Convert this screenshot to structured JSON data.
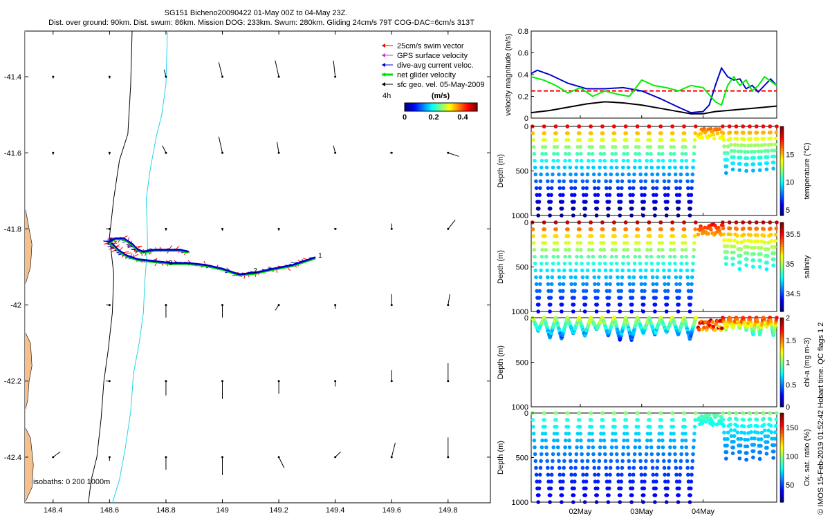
{
  "header": {
    "title_line1": "SG151 Bicheno20090422 01-May 00Z to 04-May 23Z.",
    "title_line2": "Dist. over ground: 90km. Dist. swum: 86km. Mission DOG: 233km. Swum: 280km. Gliding 24cm/s 79T COG-DAC=6cm/s 313T"
  },
  "credit": "© IMOS 15-Feb-2019 01:52:42 Hobart time. QC flags 1  2",
  "chart_data": [
    {
      "id": "map",
      "type": "scatter",
      "xlim": [
        148.3,
        149.95
      ],
      "ylim": [
        -42.52,
        -41.28
      ],
      "x_ticks": [
        148.4,
        148.6,
        148.8,
        149,
        149.2,
        149.4,
        149.6,
        149.8
      ],
      "x_tick_labels": [
        "148.4",
        "148.6",
        "148.8",
        "149",
        "149.2",
        "149.4",
        "149.6",
        "149.8"
      ],
      "y_ticks": [
        -41.4,
        -41.6,
        -41.8,
        -42,
        -42.2,
        -42.4
      ],
      "y_tick_labels": [
        "-41.4",
        "-41.6",
        "-41.8",
        "-42",
        "-42.2",
        "-42.4"
      ],
      "legend": {
        "placement": "top-right",
        "entries": [
          {
            "label": "25cm/s swim vector",
            "color": "#ff0000"
          },
          {
            "label": "GPS surface velocity",
            "color": "#cc33cc"
          },
          {
            "label": "dive-avg current veloc.",
            "color": "#0000cc"
          },
          {
            "label": "net glider velocity",
            "color": "#00dd00"
          },
          {
            "label": "sfc geo. vel. 05-May-2009",
            "color": "#000000"
          }
        ],
        "scale_label": "4h"
      },
      "colorbar": {
        "unit_label": "(m/s)",
        "ticks": [
          "0",
          "0.2",
          "0.4"
        ],
        "range": [
          0,
          0.5
        ]
      },
      "isobath_label": "isobaths: 0   200  1000m",
      "track_labels": [
        {
          "text": "1",
          "lon": 149.33,
          "lat": -41.87
        },
        {
          "text": "2",
          "lon": 149.1,
          "lat": -41.91
        },
        {
          "text": "3",
          "lon": 148.8,
          "lat": -41.89
        }
      ],
      "isobath_0": [
        [
          148.3,
          -41.28
        ],
        [
          148.3,
          -42.52
        ]
      ],
      "isobath_200": [
        [
          148.68,
          -41.28
        ],
        [
          148.675,
          -41.42
        ],
        [
          148.665,
          -41.55
        ],
        [
          148.635,
          -41.62
        ],
        [
          148.615,
          -41.72
        ],
        [
          148.6,
          -41.82
        ],
        [
          148.615,
          -41.92
        ],
        [
          148.61,
          -42.02
        ],
        [
          148.595,
          -42.12
        ],
        [
          148.58,
          -42.2
        ],
        [
          148.57,
          -42.3
        ],
        [
          148.555,
          -42.4
        ],
        [
          148.535,
          -42.46
        ],
        [
          148.525,
          -42.52
        ]
      ],
      "isobath_1000": [
        [
          148.805,
          -41.28
        ],
        [
          148.8,
          -41.42
        ],
        [
          148.785,
          -41.5
        ],
        [
          148.765,
          -41.56
        ],
        [
          148.745,
          -41.64
        ],
        [
          148.73,
          -41.72
        ],
        [
          148.735,
          -41.84
        ],
        [
          148.725,
          -41.94
        ],
        [
          148.72,
          -42.02
        ],
        [
          148.705,
          -42.1
        ],
        [
          148.685,
          -42.18
        ],
        [
          148.675,
          -42.28
        ],
        [
          148.655,
          -42.38
        ],
        [
          148.635,
          -42.46
        ],
        [
          148.61,
          -42.52
        ]
      ],
      "coast": [
        [
          [
            148.3,
            -41.74
          ],
          [
            148.31,
            -41.78
          ],
          [
            148.325,
            -41.84
          ],
          [
            148.32,
            -41.9
          ],
          [
            148.3,
            -41.95
          ]
        ],
        [
          [
            148.3,
            -42.07
          ],
          [
            148.32,
            -42.1
          ],
          [
            148.325,
            -42.16
          ],
          [
            148.315,
            -42.2
          ],
          [
            148.31,
            -42.25
          ],
          [
            148.3,
            -42.28
          ]
        ],
        [
          [
            148.3,
            -42.32
          ],
          [
            148.32,
            -42.35
          ],
          [
            148.33,
            -42.42
          ],
          [
            148.325,
            -42.48
          ],
          [
            148.3,
            -42.52
          ]
        ]
      ],
      "track": [
        [
          149.33,
          -41.875
        ],
        [
          149.25,
          -41.895
        ],
        [
          149.18,
          -41.905
        ],
        [
          149.12,
          -41.915
        ],
        [
          149.06,
          -41.92
        ],
        [
          149.0,
          -41.905
        ],
        [
          148.94,
          -41.895
        ],
        [
          148.88,
          -41.89
        ],
        [
          148.82,
          -41.89
        ],
        [
          148.76,
          -41.885
        ],
        [
          148.7,
          -41.88
        ],
        [
          148.66,
          -41.87
        ],
        [
          148.63,
          -41.855
        ],
        [
          148.61,
          -41.84
        ],
        [
          148.6,
          -41.835
        ],
        [
          148.62,
          -41.825
        ],
        [
          148.65,
          -41.825
        ],
        [
          148.68,
          -41.84
        ],
        [
          148.7,
          -41.855
        ],
        [
          148.72,
          -41.86
        ],
        [
          148.76,
          -41.855
        ],
        [
          148.8,
          -41.855
        ],
        [
          148.85,
          -41.855
        ],
        [
          148.88,
          -41.86
        ]
      ],
      "wind_arrows": [
        {
          "lon": 148.4,
          "lat": -41.4,
          "u": 0.0,
          "v": -0.01
        },
        {
          "lon": 148.6,
          "lat": -41.4,
          "u": 0.0,
          "v": -0.01
        },
        {
          "lon": 148.8,
          "lat": -41.4,
          "u": -0.01,
          "v": 0.04
        },
        {
          "lon": 149.0,
          "lat": -41.4,
          "u": -0.02,
          "v": 0.08
        },
        {
          "lon": 149.2,
          "lat": -41.4,
          "u": -0.02,
          "v": 0.09
        },
        {
          "lon": 149.4,
          "lat": -41.4,
          "u": -0.01,
          "v": 0.09
        },
        {
          "lon": 148.4,
          "lat": -41.6,
          "u": 0.0,
          "v": -0.01
        },
        {
          "lon": 148.6,
          "lat": -41.6,
          "u": 0.0,
          "v": -0.01
        },
        {
          "lon": 148.8,
          "lat": -41.6,
          "u": -0.02,
          "v": 0.04
        },
        {
          "lon": 149.0,
          "lat": -41.6,
          "u": -0.02,
          "v": 0.09
        },
        {
          "lon": 149.2,
          "lat": -41.6,
          "u": -0.01,
          "v": 0.06
        },
        {
          "lon": 149.4,
          "lat": -41.6,
          "u": -0.01,
          "v": 0.04
        },
        {
          "lon": 149.6,
          "lat": -41.6,
          "u": -0.01,
          "v": 0.0
        },
        {
          "lon": 149.8,
          "lat": -41.6,
          "u": 0.06,
          "v": -0.02
        },
        {
          "lon": 148.6,
          "lat": -41.8,
          "u": -0.02,
          "v": 0.0
        },
        {
          "lon": 148.8,
          "lat": -41.8,
          "u": 0.0,
          "v": -0.01
        },
        {
          "lon": 149.0,
          "lat": -41.8,
          "u": 0.0,
          "v": -0.01
        },
        {
          "lon": 149.2,
          "lat": -41.8,
          "u": 0.0,
          "v": -0.01
        },
        {
          "lon": 149.4,
          "lat": -41.8,
          "u": 0.01,
          "v": 0.0
        },
        {
          "lon": 149.6,
          "lat": -41.8,
          "u": 0.0,
          "v": 0.03
        },
        {
          "lon": 149.8,
          "lat": -41.8,
          "u": 0.04,
          "v": 0.05
        },
        {
          "lon": 148.6,
          "lat": -42.0,
          "u": -0.02,
          "v": 0.0
        },
        {
          "lon": 148.8,
          "lat": -42.0,
          "u": 0.0,
          "v": -0.07
        },
        {
          "lon": 149.0,
          "lat": -42.0,
          "u": 0.0,
          "v": -0.07
        },
        {
          "lon": 149.2,
          "lat": -42.0,
          "u": -0.02,
          "v": -0.03
        },
        {
          "lon": 149.4,
          "lat": -42.0,
          "u": 0.0,
          "v": -0.02
        },
        {
          "lon": 149.6,
          "lat": -42.0,
          "u": 0.0,
          "v": 0.06
        },
        {
          "lon": 149.8,
          "lat": -42.0,
          "u": 0.01,
          "v": 0.06
        },
        {
          "lon": 148.6,
          "lat": -42.2,
          "u": -0.02,
          "v": 0.0
        },
        {
          "lon": 148.8,
          "lat": -42.2,
          "u": 0.0,
          "v": -0.08
        },
        {
          "lon": 149.0,
          "lat": -42.2,
          "u": 0.0,
          "v": -0.1
        },
        {
          "lon": 149.2,
          "lat": -42.2,
          "u": 0.0,
          "v": -0.07
        },
        {
          "lon": 149.4,
          "lat": -42.2,
          "u": 0.0,
          "v": -0.03
        },
        {
          "lon": 149.6,
          "lat": -42.2,
          "u": 0.0,
          "v": 0.06
        },
        {
          "lon": 149.8,
          "lat": -42.2,
          "u": 0.0,
          "v": 0.1
        },
        {
          "lon": 148.4,
          "lat": -42.4,
          "u": 0.04,
          "v": 0.03
        },
        {
          "lon": 148.6,
          "lat": -42.4,
          "u": 0.0,
          "v": -0.02
        },
        {
          "lon": 148.8,
          "lat": -42.4,
          "u": 0.0,
          "v": -0.07
        },
        {
          "lon": 149.0,
          "lat": -42.4,
          "u": 0.0,
          "v": -0.1
        },
        {
          "lon": 149.2,
          "lat": -42.4,
          "u": 0.03,
          "v": -0.06
        },
        {
          "lon": 149.4,
          "lat": -42.4,
          "u": 0.03,
          "v": 0.03
        },
        {
          "lon": 149.6,
          "lat": -42.4,
          "u": 0.02,
          "v": 0.08
        },
        {
          "lon": 149.8,
          "lat": -42.4,
          "u": 0.0,
          "v": 0.11
        }
      ]
    },
    {
      "id": "velocity",
      "type": "line",
      "ylabel": "velocity magnitude (m/s)",
      "ylim": [
        0,
        0.8
      ],
      "y_ticks": [
        0,
        0.2,
        0.4,
        0.6,
        0.8
      ],
      "y_tick_labels": [
        "0",
        "0.2",
        "0.4",
        "0.6",
        "0.8"
      ],
      "xlim": [
        0,
        4
      ],
      "reference_line": {
        "y": 0.25,
        "color": "#ff0000"
      },
      "series": [
        {
          "color": "#0000cc",
          "x": [
            0,
            0.1,
            0.3,
            0.6,
            0.9,
            1.2,
            1.5,
            1.8,
            2.1,
            2.4,
            2.6,
            2.8,
            2.9,
            3.0,
            3.1,
            3.2,
            3.3,
            3.4,
            3.5,
            3.6,
            3.7,
            3.8,
            3.9,
            4.0
          ],
          "y": [
            0.41,
            0.44,
            0.4,
            0.32,
            0.27,
            0.27,
            0.28,
            0.25,
            0.18,
            0.1,
            0.05,
            0.06,
            0.12,
            0.3,
            0.46,
            0.38,
            0.35,
            0.36,
            0.27,
            0.3,
            0.24,
            0.3,
            0.36,
            0.3
          ]
        },
        {
          "color": "#00ee00",
          "x": [
            0,
            0.2,
            0.4,
            0.6,
            0.8,
            1.0,
            1.2,
            1.4,
            1.6,
            1.8,
            2.0,
            2.2,
            2.4,
            2.6,
            2.8,
            3.0,
            3.1,
            3.2,
            3.3,
            3.4,
            3.5,
            3.6,
            3.7,
            3.8,
            3.9,
            4.0
          ],
          "y": [
            0.38,
            0.35,
            0.3,
            0.23,
            0.28,
            0.2,
            0.25,
            0.22,
            0.2,
            0.35,
            0.3,
            0.28,
            0.25,
            0.3,
            0.28,
            0.15,
            0.12,
            0.3,
            0.38,
            0.3,
            0.35,
            0.25,
            0.3,
            0.38,
            0.34,
            0.3
          ]
        },
        {
          "color": "#000000",
          "x": [
            0,
            0.3,
            0.6,
            0.9,
            1.2,
            1.5,
            1.8,
            2.1,
            2.4,
            2.6,
            2.8,
            3.0,
            3.2,
            3.4,
            3.6,
            3.8,
            4.0
          ],
          "y": [
            0.05,
            0.07,
            0.1,
            0.13,
            0.15,
            0.14,
            0.12,
            0.09,
            0.06,
            0.04,
            0.04,
            0.06,
            0.07,
            0.08,
            0.09,
            0.1,
            0.11
          ]
        }
      ]
    },
    {
      "id": "temperature",
      "type": "scatter",
      "ylabel": "Depth (m)",
      "colorbar_label": "temperature (°C)",
      "ylim": [
        1000,
        0
      ],
      "y_ticks": [
        0,
        500,
        1000
      ],
      "y_tick_labels": [
        "0",
        "500",
        "1000"
      ],
      "cbar_range": [
        4,
        20
      ],
      "cbar_ticks": [
        5,
        10,
        15
      ],
      "cbar_tick_labels": [
        "5",
        "10",
        "15"
      ],
      "profile": {
        "surface": 18,
        "deep": 4
      }
    },
    {
      "id": "salinity",
      "type": "scatter",
      "ylabel": "Depth (m)",
      "colorbar_label": "salinity",
      "ylim": [
        1000,
        0
      ],
      "y_ticks": [
        0,
        500,
        1000
      ],
      "y_tick_labels": [
        "0",
        "500",
        "1000"
      ],
      "cbar_range": [
        34.2,
        35.7
      ],
      "cbar_ticks": [
        34.5,
        35,
        35.5
      ],
      "cbar_tick_labels": [
        "34.5",
        "35",
        "35.5"
      ],
      "profile": {
        "surface": 35.6,
        "deep": 34.35
      }
    },
    {
      "id": "chla",
      "type": "scatter",
      "ylabel": "Depth (m)",
      "colorbar_label": "chl-a (mg m-3)",
      "ylim": [
        1000,
        0
      ],
      "y_ticks": [
        0,
        500,
        1000
      ],
      "y_tick_labels": [
        "0",
        "500",
        "1000"
      ],
      "cbar_range": [
        0,
        2
      ],
      "cbar_ticks": [
        0,
        0.5,
        1,
        1.5,
        2
      ],
      "cbar_tick_labels": [
        "0",
        "0.5",
        "1",
        "1.5",
        "2"
      ],
      "max_depth": 250
    },
    {
      "id": "oxygen",
      "type": "scatter",
      "ylabel": "Depth (m)",
      "colorbar_label": "Ox. sat. ratio (%)",
      "ylim": [
        1000,
        0
      ],
      "y_ticks": [
        0,
        500,
        1000
      ],
      "y_tick_labels": [
        "0",
        "500",
        "1000"
      ],
      "cbar_range": [
        20,
        175
      ],
      "cbar_ticks": [
        50,
        100,
        150
      ],
      "cbar_tick_labels": [
        "50",
        "100",
        "150"
      ],
      "profile": {
        "surface": 98,
        "deep": 35
      }
    }
  ],
  "time_axis": {
    "ticks": [
      0.8,
      1.8,
      2.8
    ],
    "labels": [
      "02May",
      "03May",
      "04May"
    ],
    "range": [
      0,
      4
    ]
  },
  "dives": {
    "count": 14,
    "span": [
      0.02,
      2.68
    ],
    "max_depth": 1000,
    "shallow_start": 2.72,
    "shallow_end": 3.12,
    "end": 4.0
  }
}
